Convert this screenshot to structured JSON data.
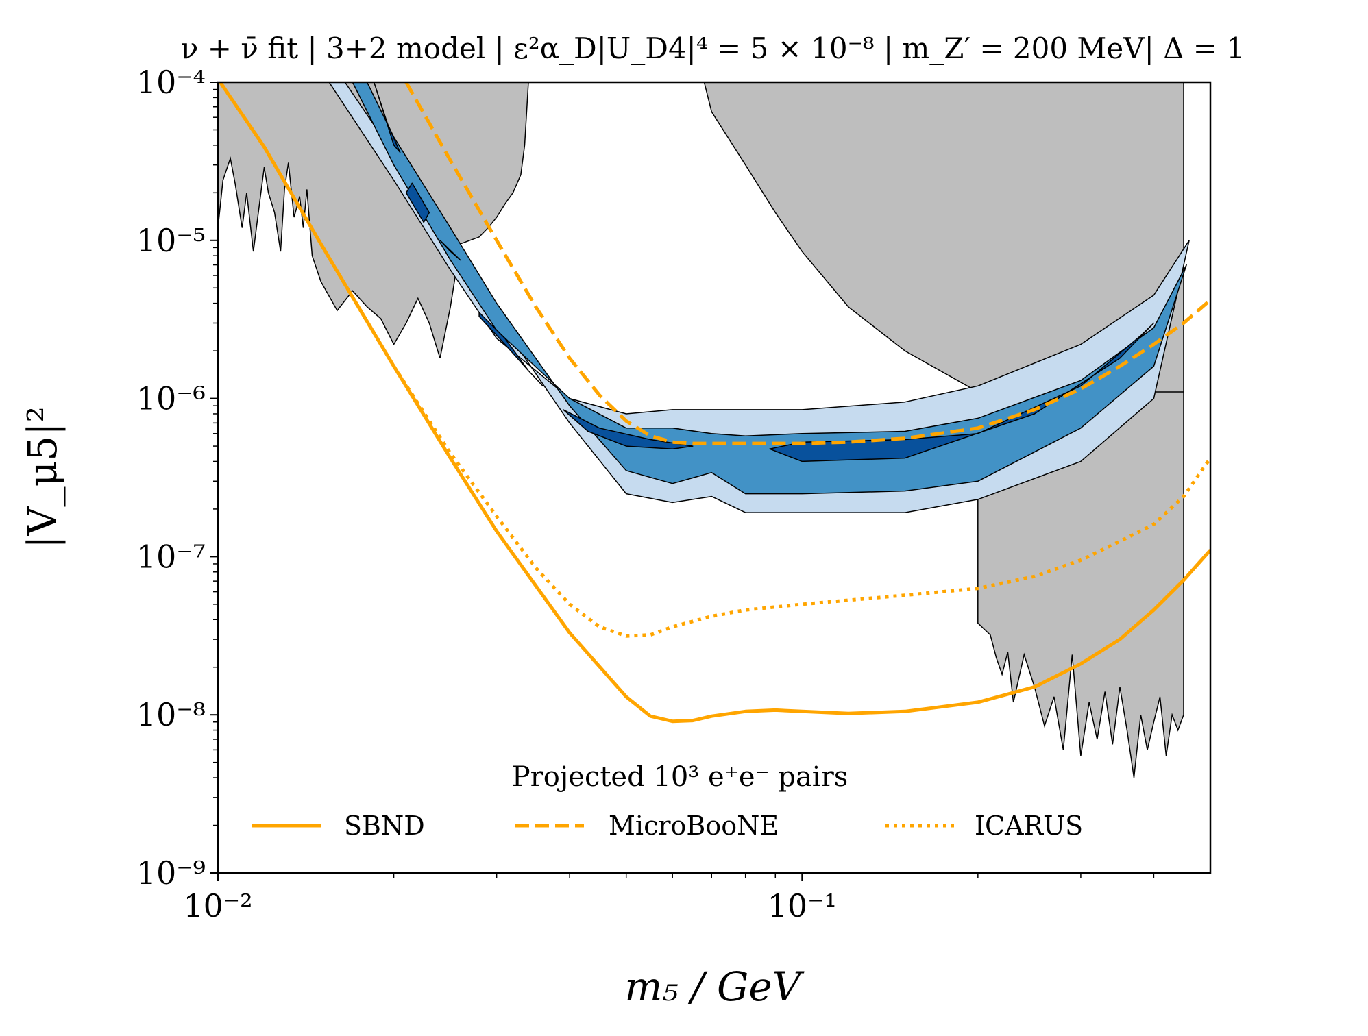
{
  "chart_data": {
    "type": "line",
    "title": "ν + ν̄ fit | 3+2 model | ε²α_D|U_D4|⁴ = 5 × 10⁻⁸ | m_Z′ = 200 MeV| Δ = 1",
    "xlabel": "m₅ / GeV",
    "ylabel": "|V_μ5|²",
    "xscale": "log",
    "yscale": "log",
    "xlim": [
      0.01,
      0.5
    ],
    "ylim": [
      1e-09,
      0.0001
    ],
    "x_ticks": [
      {
        "value": 0.01,
        "label": "10⁻²"
      },
      {
        "value": 0.1,
        "label": "10⁻¹"
      }
    ],
    "y_ticks": [
      {
        "value": 1e-09,
        "label": "10⁻⁹"
      },
      {
        "value": 1e-08,
        "label": "10⁻⁸"
      },
      {
        "value": 1e-07,
        "label": "10⁻⁷"
      },
      {
        "value": 1e-06,
        "label": "10⁻⁶"
      },
      {
        "value": 1e-05,
        "label": "10⁻⁵"
      },
      {
        "value": 0.0001,
        "label": "10⁻⁴"
      }
    ],
    "legend_title": "Projected 10³ e⁺e⁻ pairs",
    "legend_position": "bottom-center",
    "series": [
      {
        "name": "SBND",
        "style": "solid",
        "color": "#FFA500",
        "x": [
          0.01,
          0.012,
          0.015,
          0.02,
          0.025,
          0.03,
          0.04,
          0.05,
          0.055,
          0.06,
          0.065,
          0.07,
          0.08,
          0.09,
          0.1,
          0.12,
          0.15,
          0.2,
          0.25,
          0.3,
          0.35,
          0.4,
          0.45,
          0.5
        ],
        "y": [
          0.000105,
          3.9e-05,
          9.5e-06,
          1.6e-06,
          4.2e-07,
          1.45e-07,
          3.3e-08,
          1.3e-08,
          9.8e-09,
          9.1e-09,
          9.2e-09,
          9.8e-09,
          1.05e-08,
          1.07e-08,
          1.05e-08,
          1.02e-08,
          1.05e-08,
          1.2e-08,
          1.5e-08,
          2.1e-08,
          3e-08,
          4.6e-08,
          7.1e-08,
          1.1e-07
        ]
      },
      {
        "name": "MicroBooNE",
        "style": "dashed",
        "color": "#FFA500",
        "x": [
          0.021,
          0.025,
          0.03,
          0.035,
          0.04,
          0.045,
          0.05,
          0.055,
          0.06,
          0.065,
          0.07,
          0.08,
          0.1,
          0.12,
          0.15,
          0.2,
          0.25,
          0.3,
          0.35,
          0.4,
          0.45,
          0.5
        ],
        "y": [
          0.0001,
          3.2e-05,
          1e-05,
          3.8e-06,
          1.8e-06,
          1.05e-06,
          7.2e-07,
          5.8e-07,
          5.3e-07,
          5.2e-07,
          5.2e-07,
          5.2e-07,
          5.2e-07,
          5.3e-07,
          5.6e-07,
          6.5e-07,
          8.5e-07,
          1.15e-06,
          1.6e-06,
          2.2e-06,
          3e-06,
          4.2e-06
        ]
      },
      {
        "name": "ICARUS",
        "style": "dotted",
        "color": "#FFA500",
        "x": [
          0.01,
          0.012,
          0.015,
          0.02,
          0.025,
          0.03,
          0.035,
          0.04,
          0.045,
          0.05,
          0.055,
          0.06,
          0.07,
          0.08,
          0.1,
          0.12,
          0.15,
          0.2,
          0.25,
          0.3,
          0.35,
          0.4,
          0.45,
          0.5
        ],
        "y": [
          0.000105,
          3.9e-05,
          9.5e-06,
          1.6e-06,
          4.5e-07,
          1.8e-07,
          8.5e-08,
          5e-08,
          3.6e-08,
          3.15e-08,
          3.2e-08,
          3.6e-08,
          4.2e-08,
          4.6e-08,
          5e-08,
          5.3e-08,
          5.7e-08,
          6.3e-08,
          7.5e-08,
          9.5e-08,
          1.25e-07,
          1.6e-07,
          2.4e-07,
          4.2e-07
        ]
      }
    ],
    "excluded_regions": [
      {
        "name": "left-excluded",
        "color": "#BEBEBE",
        "x": [
          0.01,
          0.0102,
          0.0105,
          0.0107,
          0.011,
          0.0112,
          0.0115,
          0.0118,
          0.012,
          0.0122,
          0.0125,
          0.0128,
          0.013,
          0.0132,
          0.0135,
          0.0138,
          0.014,
          0.0142,
          0.0145,
          0.015,
          0.016,
          0.017,
          0.018,
          0.019,
          0.02,
          0.021,
          0.022,
          0.023,
          0.024,
          0.025,
          0.026,
          0.027,
          0.028,
          0.029,
          0.03,
          0.031,
          0.032,
          0.033,
          0.0335,
          0.034,
          0.034,
          0.01
        ],
        "y": [
          1.2e-05,
          2.4e-05,
          3.3e-05,
          2.3e-05,
          1.2e-05,
          2e-05,
          8.5e-06,
          1.8e-05,
          2.9e-05,
          2e-05,
          1.5e-05,
          8.5e-06,
          2.1e-05,
          3.1e-05,
          1.4e-05,
          1.9e-05,
          1.2e-05,
          2.1e-05,
          8e-06,
          5.5e-06,
          3.6e-06,
          4.8e-06,
          3.8e-06,
          3.2e-06,
          2.2e-06,
          3e-06,
          4.3e-06,
          3e-06,
          1.8e-06,
          3.8e-06,
          9.5e-06,
          1e-05,
          1.05e-05,
          1.2e-05,
          1.4e-05,
          1.7e-05,
          2e-05,
          2.6e-05,
          4e-05,
          0.0001,
          0.0001,
          0.0001
        ]
      },
      {
        "name": "upper-right-excluded",
        "color": "#BEBEBE",
        "x": [
          0.068,
          0.07,
          0.08,
          0.09,
          0.1,
          0.12,
          0.15,
          0.2,
          0.2,
          0.3,
          0.4,
          0.45,
          0.45,
          0.068
        ],
        "y": [
          0.0001,
          6.5e-05,
          3e-05,
          1.5e-05,
          8.5e-06,
          3.8e-06,
          2e-06,
          1.1e-06,
          1e-06,
          1e-06,
          1e-06,
          1e-06,
          0.0001,
          0.0001
        ]
      },
      {
        "name": "lower-right-excluded",
        "color": "#BEBEBE",
        "x": [
          0.2,
          0.2,
          0.21,
          0.215,
          0.22,
          0.225,
          0.23,
          0.24,
          0.25,
          0.26,
          0.27,
          0.28,
          0.29,
          0.3,
          0.31,
          0.32,
          0.33,
          0.34,
          0.35,
          0.36,
          0.37,
          0.38,
          0.39,
          0.4,
          0.41,
          0.42,
          0.43,
          0.44,
          0.45,
          0.45,
          0.2
        ],
        "y": [
          1.1e-06,
          3.8e-08,
          3.2e-08,
          2.3e-08,
          1.8e-08,
          2.5e-08,
          1.2e-08,
          2.4e-08,
          1.5e-08,
          8.5e-09,
          1.3e-08,
          6e-09,
          2.4e-08,
          5.5e-09,
          1.2e-08,
          7e-09,
          1.4e-08,
          6.5e-09,
          1.5e-08,
          8e-09,
          4e-09,
          1e-08,
          6e-09,
          9e-09,
          1.3e-08,
          5.5e-09,
          1e-08,
          8e-09,
          1e-08,
          1.1e-06,
          1.1e-06
        ]
      }
    ],
    "fit_contours": [
      {
        "level": "outer",
        "color": "#C6DBEF",
        "upper": {
          "x": [
            0.0155,
            0.02,
            0.025,
            0.03,
            0.04,
            0.05,
            0.06,
            0.07,
            0.08,
            0.1,
            0.15,
            0.2,
            0.3,
            0.4,
            0.46
          ],
          "y": [
            0.0001,
            2.4e-05,
            6.5e-06,
            2.4e-06,
            1e-06,
            8e-07,
            8.5e-07,
            8.5e-07,
            8.5e-07,
            8.5e-07,
            9.5e-07,
            1.2e-06,
            2.2e-06,
            4.5e-06,
            1e-05
          ]
        },
        "lower": {
          "x": [
            0.0165,
            0.02,
            0.025,
            0.03,
            0.04,
            0.05,
            0.06,
            0.07,
            0.08,
            0.1,
            0.15,
            0.2,
            0.3,
            0.4,
            0.46
          ],
          "y": [
            0.0001,
            3.5e-05,
            9.8e-06,
            3.3e-06,
            7e-07,
            2.5e-07,
            2.2e-07,
            2.4e-07,
            1.9e-07,
            1.9e-07,
            1.9e-07,
            2.3e-07,
            4e-07,
            1e-06,
            1e-05
          ]
        }
      },
      {
        "level": "middle",
        "color": "#4292C6",
        "upper": {
          "x": [
            0.017,
            0.02,
            0.025,
            0.03,
            0.04,
            0.05,
            0.06,
            0.07,
            0.08,
            0.1,
            0.15,
            0.2,
            0.3,
            0.4,
            0.455
          ],
          "y": [
            0.0001,
            3e-05,
            7.5e-06,
            2.7e-06,
            1e-06,
            6.5e-07,
            6.5e-07,
            6e-07,
            5.8e-07,
            6e-07,
            6.2e-07,
            7.5e-07,
            1.3e-06,
            2.8e-06,
            7e-06
          ]
        },
        "lower": {
          "x": [
            0.018,
            0.02,
            0.025,
            0.03,
            0.04,
            0.05,
            0.06,
            0.07,
            0.08,
            0.1,
            0.15,
            0.2,
            0.3,
            0.4,
            0.455
          ],
          "y": [
            0.0001,
            4.5e-05,
            1.2e-05,
            4e-06,
            9e-07,
            3.5e-07,
            2.9e-07,
            3.4e-07,
            2.5e-07,
            2.5e-07,
            2.6e-07,
            3e-07,
            6.5e-07,
            1.6e-06,
            7e-06
          ]
        }
      },
      {
        "level": "inner",
        "color": "#08519C",
        "blobs": [
          {
            "x": [
              0.0185,
              0.02,
              0.0205,
              0.0195,
              0.0185
            ],
            "y": [
              0.0001,
              4e-05,
              3.6e-05,
              5.5e-05,
              0.0001
            ]
          },
          {
            "x": [
              0.0215,
              0.023,
              0.0225,
              0.021
            ],
            "y": [
              2.3e-05,
              1.5e-05,
              1.3e-05,
              2e-05
            ]
          },
          {
            "x": [
              0.024,
              0.026,
              0.025
            ],
            "y": [
              1e-05,
              7.5e-06,
              8.5e-06
            ]
          },
          {
            "x": [
              0.028,
              0.031,
              0.034,
              0.036,
              0.034,
              0.031,
              0.028
            ],
            "y": [
              3.3e-06,
              2.2e-06,
              1.5e-06,
              1.2e-06,
              1.5e-06,
              2.4e-06,
              3.5e-06
            ]
          },
          {
            "x": [
              0.039,
              0.045,
              0.055,
              0.065,
              0.06,
              0.05,
              0.043,
              0.039
            ],
            "y": [
              8.5e-07,
              6.5e-07,
              5.5e-07,
              5e-07,
              4.8e-07,
              5e-07,
              6.2e-07,
              8.5e-07
            ]
          },
          {
            "x": [
              0.088,
              0.1,
              0.15,
              0.2,
              0.3,
              0.38,
              0.4,
              0.35,
              0.25,
              0.15,
              0.1,
              0.088
            ],
            "y": [
              4.8e-07,
              5.3e-07,
              5.5e-07,
              6e-07,
              1.2e-06,
              2.5e-06,
              3e-06,
              1.8e-06,
              8e-07,
              4.2e-07,
              4e-07,
              4.8e-07
            ]
          }
        ]
      }
    ]
  }
}
